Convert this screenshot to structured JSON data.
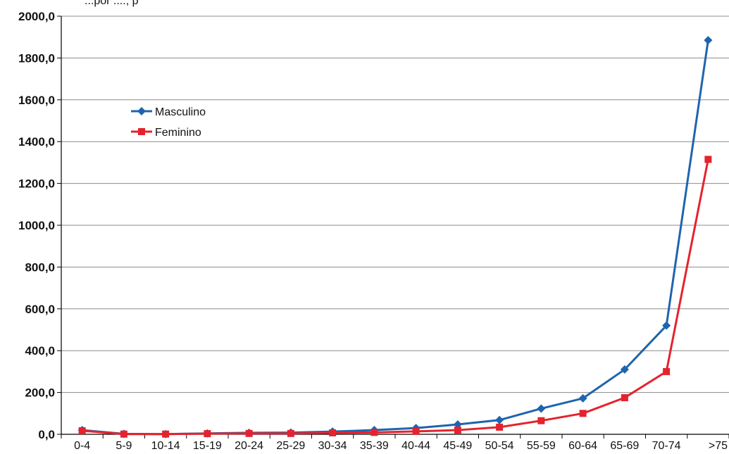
{
  "chart_data": {
    "type": "line",
    "partial_title": "...por ...., p",
    "xlabel": "",
    "ylabel": "",
    "categories": [
      "0-4",
      "5-9",
      "10-14",
      "15-19",
      "20-24",
      "25-29",
      "30-34",
      "35-39",
      "40-44",
      "45-49",
      "50-54",
      "55-59",
      "60-64",
      "65-69",
      "70-74",
      ">75"
    ],
    "ylim": [
      0,
      2000
    ],
    "yticks": [
      "0,0",
      "200,0",
      "400,0",
      "600,0",
      "800,0",
      "1000,0",
      "1200,0",
      "1400,0",
      "1600,0",
      "1800,0",
      "2000,0"
    ],
    "grid": true,
    "legend_position": "upper-left",
    "series": [
      {
        "name": "Masculino",
        "color": "#1f64ad",
        "marker": "diamond",
        "values": [
          20,
          2,
          1,
          4,
          7,
          8,
          13,
          20,
          30,
          47,
          68,
          123,
          172,
          310,
          520,
          1885
        ]
      },
      {
        "name": "Feminino",
        "color": "#e4232e",
        "marker": "square",
        "values": [
          17,
          1,
          1,
          3,
          4,
          4,
          7,
          9,
          14,
          20,
          34,
          65,
          100,
          175,
          300,
          1315
        ]
      }
    ]
  }
}
